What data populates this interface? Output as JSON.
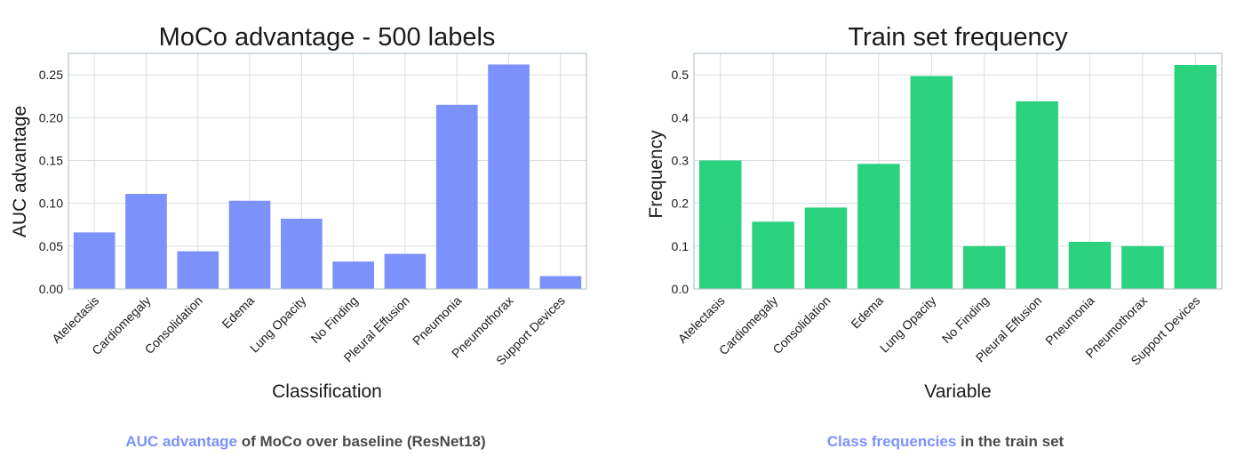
{
  "chart_data": [
    {
      "type": "bar",
      "title": "MoCo advantage - 500 labels",
      "xlabel": "Classification",
      "ylabel": "AUC advantage",
      "categories": [
        "Atelectasis",
        "Cardiomegaly",
        "Consolidation",
        "Edema",
        "Lung Opacity",
        "No Finding",
        "Pleural Effusion",
        "Pneumonia",
        "Pneumothorax",
        "Support Devices"
      ],
      "values": [
        0.066,
        0.111,
        0.044,
        0.103,
        0.082,
        0.032,
        0.041,
        0.215,
        0.262,
        0.015
      ],
      "ylim": [
        0,
        0.275
      ],
      "yticks": [
        "0.00",
        "0.05",
        "0.10",
        "0.15",
        "0.20",
        "0.25"
      ],
      "ytick_values": [
        0,
        0.05,
        0.1,
        0.15,
        0.2,
        0.25
      ],
      "color": "#7b91fb",
      "grid": true,
      "legend": "none"
    },
    {
      "type": "bar",
      "title": "Train set frequency",
      "xlabel": "Variable",
      "ylabel": "Frequency",
      "categories": [
        "Atelectasis",
        "Cardiomegaly",
        "Consolidation",
        "Edema",
        "Lung Opacity",
        "No Finding",
        "Pleural Effusion",
        "Pneumonia",
        "Pneumothorax",
        "Support Devices"
      ],
      "values": [
        0.3,
        0.157,
        0.19,
        0.292,
        0.497,
        0.1,
        0.438,
        0.11,
        0.1,
        0.523
      ],
      "ylim": [
        0,
        0.55
      ],
      "yticks": [
        "0.0",
        "0.1",
        "0.2",
        "0.3",
        "0.4",
        "0.5"
      ],
      "ytick_values": [
        0,
        0.1,
        0.2,
        0.3,
        0.4,
        0.5
      ],
      "color": "#2ad27e",
      "grid": true,
      "legend": "none"
    }
  ],
  "captions": {
    "left": {
      "highlight": "AUC advantage",
      "rest": " of MoCo over baseline (ResNet18)"
    },
    "right": {
      "highlight": "Class frequencies",
      "rest": " in the train set"
    }
  }
}
